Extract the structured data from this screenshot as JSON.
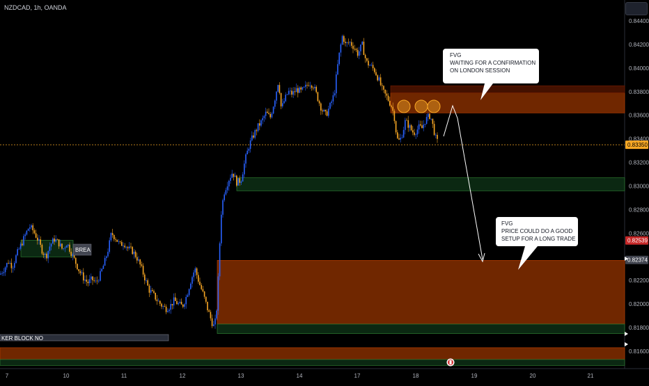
{
  "header": {
    "symbol": "NZDCAD, 1h, OANDA"
  },
  "colors": {
    "bull": "#2962ff",
    "bear": "#f9a825",
    "fvg_fill": "#7a2a00",
    "fvg_top_fill": "#4a1200",
    "green_zone": "#0c2b14",
    "green_border": "#2e7d32",
    "price_line": "#f9a825",
    "red_tag": "#c62828"
  },
  "chart_data": {
    "type": "candlestick",
    "symbol": "NZDCAD",
    "timeframe": "1h",
    "source": "OANDA",
    "x_tick_labels": [
      "7",
      "10",
      "11",
      "12",
      "13",
      "14",
      "17",
      "18",
      "19",
      "20",
      "21"
    ],
    "y_tick_labels": [
      "0.84400",
      "0.84200",
      "0.84000",
      "0.83800",
      "0.83600",
      "0.83400",
      "0.83200",
      "0.83000",
      "0.82800",
      "0.82600",
      "0.82200",
      "0.82000",
      "0.81800",
      "0.81600"
    ],
    "ylim": [
      0.8148,
      0.8455
    ],
    "price_tags": [
      {
        "label": "0.83350",
        "value": 0.8335,
        "color": "#f9a825"
      },
      {
        "label": "0.82539",
        "value": 0.82539,
        "color": "#c62828"
      },
      {
        "label": "0.82374",
        "value": 0.82374,
        "color": "#434651"
      }
    ],
    "close_path": [
      [
        0,
        0.8225
      ],
      [
        6,
        0.823
      ],
      [
        12,
        0.8236
      ],
      [
        18,
        0.8232
      ],
      [
        24,
        0.8242
      ],
      [
        30,
        0.825
      ],
      [
        36,
        0.8258
      ],
      [
        42,
        0.8266
      ],
      [
        48,
        0.8262
      ],
      [
        54,
        0.8255
      ],
      [
        60,
        0.8246
      ],
      [
        66,
        0.824
      ],
      [
        72,
        0.825
      ],
      [
        78,
        0.8255
      ],
      [
        84,
        0.8252
      ],
      [
        90,
        0.8246
      ],
      [
        96,
        0.8252
      ],
      [
        102,
        0.8244
      ],
      [
        108,
        0.8236
      ],
      [
        114,
        0.8228
      ],
      [
        120,
        0.8222
      ],
      [
        126,
        0.8218
      ],
      [
        132,
        0.8221
      ],
      [
        138,
        0.8218
      ],
      [
        144,
        0.8225
      ],
      [
        150,
        0.8235
      ],
      [
        156,
        0.8248
      ],
      [
        160,
        0.826
      ],
      [
        166,
        0.8256
      ],
      [
        172,
        0.825
      ],
      [
        178,
        0.8252
      ],
      [
        184,
        0.8247
      ],
      [
        190,
        0.8245
      ],
      [
        196,
        0.824
      ],
      [
        202,
        0.8232
      ],
      [
        208,
        0.8222
      ],
      [
        214,
        0.8212
      ],
      [
        220,
        0.8208
      ],
      [
        226,
        0.8203
      ],
      [
        232,
        0.8199
      ],
      [
        238,
        0.8196
      ],
      [
        244,
        0.8198
      ],
      [
        250,
        0.8203
      ],
      [
        256,
        0.82
      ],
      [
        262,
        0.8198
      ],
      [
        268,
        0.8207
      ],
      [
        274,
        0.822
      ],
      [
        280,
        0.823
      ],
      [
        286,
        0.8218
      ],
      [
        292,
        0.8208
      ],
      [
        298,
        0.8196
      ],
      [
        304,
        0.8185
      ],
      [
        308,
        0.818
      ],
      [
        312,
        0.82
      ],
      [
        315,
        0.8245
      ],
      [
        318,
        0.828
      ],
      [
        322,
        0.8295
      ],
      [
        328,
        0.8305
      ],
      [
        334,
        0.8312
      ],
      [
        340,
        0.8303
      ],
      [
        346,
        0.8305
      ],
      [
        352,
        0.8322
      ],
      [
        358,
        0.8335
      ],
      [
        364,
        0.8343
      ],
      [
        370,
        0.835
      ],
      [
        376,
        0.8355
      ],
      [
        382,
        0.8362
      ],
      [
        388,
        0.8358
      ],
      [
        394,
        0.8372
      ],
      [
        400,
        0.839
      ],
      [
        404,
        0.8365
      ],
      [
        408,
        0.8372
      ],
      [
        414,
        0.838
      ],
      [
        420,
        0.8378
      ],
      [
        426,
        0.8382
      ],
      [
        432,
        0.838
      ],
      [
        438,
        0.8383
      ],
      [
        444,
        0.8388
      ],
      [
        450,
        0.8385
      ],
      [
        456,
        0.8375
      ],
      [
        462,
        0.8365
      ],
      [
        468,
        0.836
      ],
      [
        474,
        0.8368
      ],
      [
        480,
        0.8378
      ],
      [
        484,
        0.8398
      ],
      [
        488,
        0.8415
      ],
      [
        492,
        0.8428
      ],
      [
        496,
        0.842
      ],
      [
        502,
        0.8422
      ],
      [
        508,
        0.8418
      ],
      [
        514,
        0.8412
      ],
      [
        520,
        0.842
      ],
      [
        526,
        0.8405
      ],
      [
        532,
        0.8402
      ],
      [
        538,
        0.8398
      ],
      [
        544,
        0.839
      ],
      [
        550,
        0.838
      ],
      [
        556,
        0.8375
      ],
      [
        562,
        0.8368
      ],
      [
        566,
        0.836
      ],
      [
        570,
        0.834
      ],
      [
        574,
        0.8338
      ],
      [
        578,
        0.8345
      ],
      [
        582,
        0.8355
      ],
      [
        586,
        0.8352
      ],
      [
        590,
        0.8348
      ],
      [
        594,
        0.8345
      ],
      [
        598,
        0.8347
      ],
      [
        602,
        0.835
      ],
      [
        606,
        0.8349
      ],
      [
        610,
        0.8355
      ],
      [
        614,
        0.8358
      ],
      [
        618,
        0.836
      ],
      [
        622,
        0.835
      ],
      [
        626,
        0.834
      ],
      [
        630,
        0.8335
      ]
    ],
    "zones": [
      {
        "kind": "fvg",
        "x0": 561,
        "x1": 897,
        "y_top": 0.8379,
        "y_bottom": 0.8362
      },
      {
        "kind": "fvg_upper",
        "x0": 561,
        "x1": 897,
        "y_top": 0.8385,
        "y_bottom": 0.8379
      },
      {
        "kind": "green",
        "x0": 340,
        "x1": 897,
        "y_top": 0.8307,
        "y_bottom": 0.8296
      },
      {
        "kind": "fvg",
        "x0": 312,
        "x1": 897,
        "y_top": 0.8237,
        "y_bottom": 0.8183
      },
      {
        "kind": "green",
        "x0": 312,
        "x1": 897,
        "y_top": 0.8183,
        "y_bottom": 0.8175
      },
      {
        "kind": "fvg",
        "x0": 0,
        "x1": 897,
        "y_top": 0.8163,
        "y_bottom": 0.8153
      },
      {
        "kind": "green",
        "x0": 0,
        "x1": 897,
        "y_top": 0.8153,
        "y_bottom": 0.8148
      },
      {
        "kind": "green",
        "x0": 30,
        "x1": 105,
        "y_top": 0.8254,
        "y_bottom": 0.824
      }
    ],
    "callouts": [
      {
        "lines": [
          "FVG",
          "WAITING FOR A CONFIRMATION",
          "ON LONDON SESSION"
        ]
      },
      {
        "lines": [
          "FVG",
          "PRICE COULD DO A GOOD",
          "SETUP FOR A LONG TRADE"
        ]
      }
    ],
    "labels": {
      "brea": "BREA",
      "breaker_block": "KER BLOCK NO"
    }
  }
}
